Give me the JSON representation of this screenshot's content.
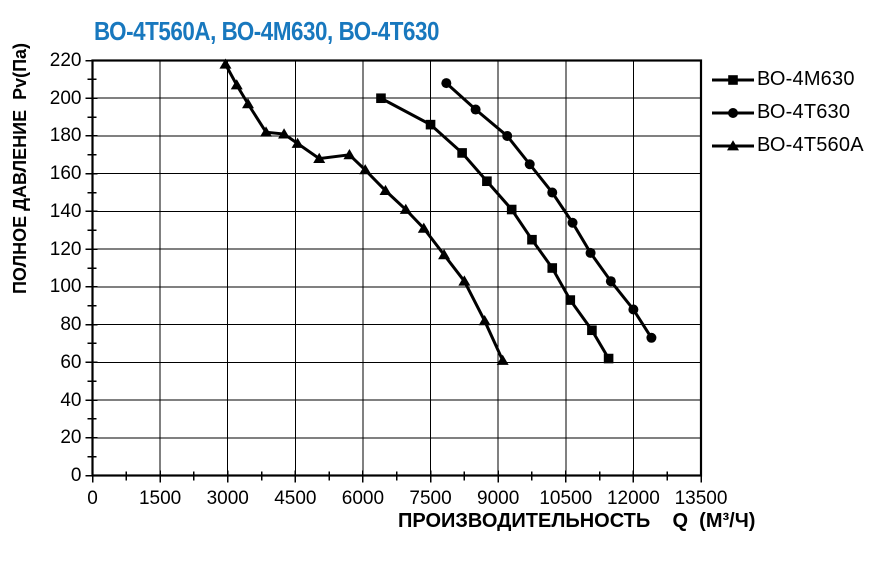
{
  "colors": {
    "title": "#1878BE",
    "line": "#000000",
    "text": "#000000",
    "grid": "#000000",
    "background": "#ffffff"
  },
  "chart_data": {
    "type": "line",
    "title": "ВО-4Т560А, ВО-4М630, ВО-4Т630",
    "xlabel": "ПРОИЗВОДИТЕЛЬНОСТЬ    Q  (М³/Ч)",
    "ylabel": "ПОЛНОЕ ДАВЛЕНИЕ  Pv(Па)",
    "xlim": [
      0,
      13500
    ],
    "ylim": [
      0,
      220
    ],
    "x_major_step": 1500,
    "x_minor_step": 750,
    "y_major_step": 20,
    "y_minor_step": 10,
    "x_ticks": [
      0,
      1500,
      3000,
      4500,
      6000,
      7500,
      9000,
      10500,
      12000,
      13500
    ],
    "y_ticks": [
      0,
      20,
      40,
      60,
      80,
      100,
      120,
      140,
      160,
      180,
      200,
      220
    ],
    "grid": "major-both",
    "legend_position": "right-outside",
    "series": [
      {
        "name": "ВО-4М630",
        "marker": "square",
        "color": "#000000",
        "points": [
          [
            6400,
            200
          ],
          [
            7500,
            186
          ],
          [
            8200,
            171
          ],
          [
            8750,
            156
          ],
          [
            9300,
            141
          ],
          [
            9750,
            125
          ],
          [
            10200,
            110
          ],
          [
            10600,
            93
          ],
          [
            11080,
            77
          ],
          [
            11450,
            62
          ]
        ]
      },
      {
        "name": "ВО-4Т630",
        "marker": "circle",
        "color": "#000000",
        "points": [
          [
            7850,
            208
          ],
          [
            8500,
            194
          ],
          [
            9200,
            180
          ],
          [
            9700,
            165
          ],
          [
            10200,
            150
          ],
          [
            10650,
            134
          ],
          [
            11050,
            118
          ],
          [
            11500,
            103
          ],
          [
            12000,
            88
          ],
          [
            12400,
            73
          ]
        ]
      },
      {
        "name": "ВО-4Т560А",
        "marker": "triangle",
        "color": "#000000",
        "points": [
          [
            2950,
            218
          ],
          [
            3200,
            207
          ],
          [
            3450,
            197
          ],
          [
            3850,
            182
          ],
          [
            4250,
            181
          ],
          [
            4550,
            176
          ],
          [
            5030,
            168
          ],
          [
            5700,
            170
          ],
          [
            6050,
            162
          ],
          [
            6500,
            151
          ],
          [
            6950,
            141
          ],
          [
            7350,
            131
          ],
          [
            7800,
            117
          ],
          [
            8250,
            103
          ],
          [
            8700,
            82
          ],
          [
            9100,
            61
          ]
        ]
      }
    ]
  }
}
